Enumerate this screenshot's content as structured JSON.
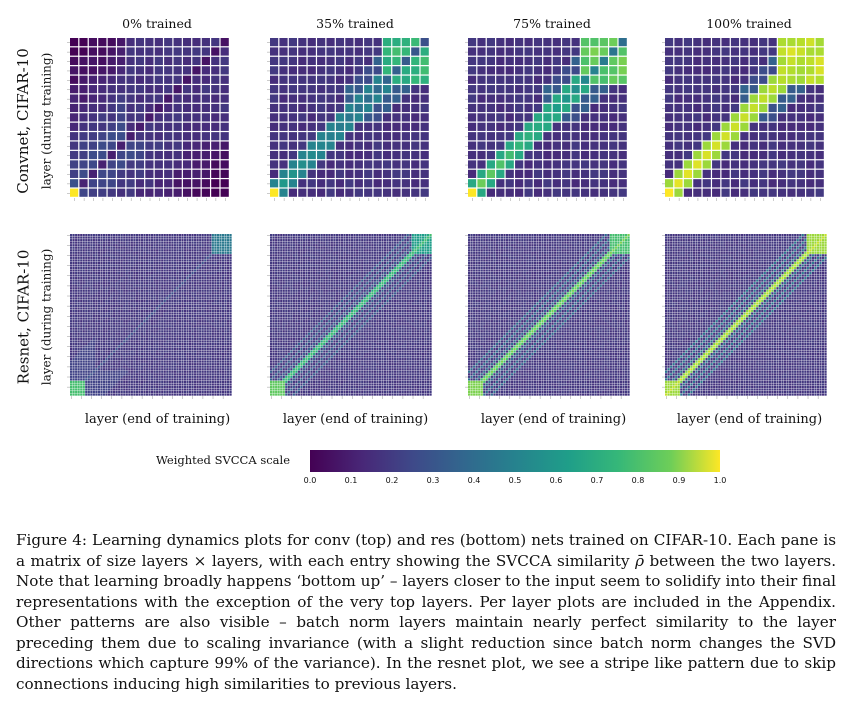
{
  "columns": [
    "0% trained",
    "35% trained",
    "75% trained",
    "100% trained"
  ],
  "row_labels": {
    "convnet": "Convnet, CIFAR-10",
    "resnet": "Resnet, CIFAR-10",
    "ylabel": "layer (during training)"
  },
  "xlabel": "layer (end of training)",
  "colorbar": {
    "label": "Weighted SVCCA scale",
    "ticks": [
      "0.0",
      "0.1",
      "0.2",
      "0.3",
      "0.4",
      "0.5",
      "0.6",
      "0.7",
      "0.8",
      "0.9",
      "1.0"
    ],
    "colormap": "viridis"
  },
  "caption": {
    "lead": "Figure 4: Learning dynamics plots for conv (top) and res (bottom) nets trained on CIFAR-10. Each pane is a matrix of size layers × layers, with each entry showing the SVCCA similarity",
    "symbol": "ρ̄",
    "rest": "between the two layers. Note that learning broadly happens ‘bottom up’ – layers closer to the input seem to solidify into their final representations with the exception of the very top layers. Per layer plots are included in the Appendix. Other patterns are also visible – batch norm layers maintain nearly perfect similarity to the layer preceding them due to scaling invariance (with a slight reduction since batch norm changes the SVD directions which capture 99% of the variance). In the resnet plot, we see a stripe like pattern due to skip connections inducing high similarities to previous layers."
  },
  "chart_data": {
    "type": "heatmap",
    "panels": [
      {
        "row": "convnet",
        "column": "0% trained"
      },
      {
        "row": "convnet",
        "column": "35% trained"
      },
      {
        "row": "convnet",
        "column": "75% trained"
      },
      {
        "row": "convnet",
        "column": "100% trained"
      },
      {
        "row": "resnet",
        "column": "0% trained"
      },
      {
        "row": "resnet",
        "column": "35% trained"
      },
      {
        "row": "resnet",
        "column": "75% trained"
      },
      {
        "row": "resnet",
        "column": "100% trained"
      }
    ],
    "convnet_layers": 17,
    "resnet_layers": 64,
    "vmin": 0.0,
    "vmax": 1.0
  }
}
